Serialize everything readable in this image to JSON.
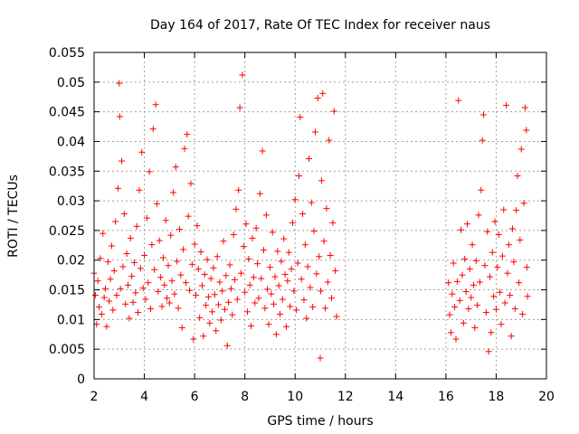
{
  "chart_data": {
    "type": "scatter",
    "title": "Day 164 of 2017, Rate Of TEC Index for receiver naus",
    "xlabel": "GPS time / hours",
    "ylabel": "ROTI / TECUs",
    "xlim": [
      2,
      20
    ],
    "ylim": [
      0,
      0.055
    ],
    "x_ticks": [
      "2",
      "4",
      "6",
      "8",
      "10",
      "12",
      "14",
      "16",
      "18",
      "20"
    ],
    "y_ticks": [
      "0",
      "0.005",
      "0.01",
      "0.015",
      "0.02",
      "0.025",
      "0.03",
      "0.035",
      "0.04",
      "0.045",
      "0.05",
      "0.055"
    ],
    "grid": true,
    "marker": "+",
    "color": "#ff0000",
    "series": [
      {
        "name": "ROTI",
        "points": [
          [
            2.0,
            0.0178
          ],
          [
            2.05,
            0.0141
          ],
          [
            2.1,
            0.0092
          ],
          [
            2.15,
            0.0165
          ],
          [
            2.2,
            0.0121
          ],
          [
            2.25,
            0.0203
          ],
          [
            2.3,
            0.0109
          ],
          [
            2.35,
            0.0245
          ],
          [
            2.4,
            0.0137
          ],
          [
            2.45,
            0.0152
          ],
          [
            2.5,
            0.0088
          ],
          [
            2.55,
            0.0197
          ],
          [
            2.6,
            0.0131
          ],
          [
            2.65,
            0.0168
          ],
          [
            2.7,
            0.0224
          ],
          [
            2.75,
            0.0116
          ],
          [
            2.8,
            0.0182
          ],
          [
            2.85,
            0.0265
          ],
          [
            2.9,
            0.0141
          ],
          [
            2.95,
            0.0321
          ],
          [
            3.0,
            0.0498
          ],
          [
            3.02,
            0.0442
          ],
          [
            3.05,
            0.0152
          ],
          [
            3.1,
            0.0367
          ],
          [
            3.15,
            0.0189
          ],
          [
            3.2,
            0.0278
          ],
          [
            3.25,
            0.0126
          ],
          [
            3.3,
            0.0211
          ],
          [
            3.35,
            0.0158
          ],
          [
            3.4,
            0.0102
          ],
          [
            3.45,
            0.0237
          ],
          [
            3.5,
            0.0173
          ],
          [
            3.55,
            0.0129
          ],
          [
            3.6,
            0.0196
          ],
          [
            3.65,
            0.0145
          ],
          [
            3.7,
            0.0257
          ],
          [
            3.75,
            0.0112
          ],
          [
            3.8,
            0.0318
          ],
          [
            3.85,
            0.0186
          ],
          [
            3.9,
            0.0382
          ],
          [
            3.95,
            0.0153
          ],
          [
            4.0,
            0.0208
          ],
          [
            4.05,
            0.0134
          ],
          [
            4.1,
            0.0271
          ],
          [
            4.15,
            0.0162
          ],
          [
            4.2,
            0.0349
          ],
          [
            4.25,
            0.0118
          ],
          [
            4.3,
            0.0226
          ],
          [
            4.35,
            0.0421
          ],
          [
            4.4,
            0.0184
          ],
          [
            4.45,
            0.0462
          ],
          [
            4.5,
            0.0295
          ],
          [
            4.55,
            0.0147
          ],
          [
            4.6,
            0.0233
          ],
          [
            4.65,
            0.0171
          ],
          [
            4.7,
            0.0122
          ],
          [
            4.75,
            0.0204
          ],
          [
            4.8,
            0.0158
          ],
          [
            4.85,
            0.0267
          ],
          [
            4.9,
            0.0136
          ],
          [
            4.95,
            0.0191
          ],
          [
            5.0,
            0.0128
          ],
          [
            5.05,
            0.0242
          ],
          [
            5.1,
            0.0165
          ],
          [
            5.15,
            0.0314
          ],
          [
            5.2,
            0.0143
          ],
          [
            5.25,
            0.0357
          ],
          [
            5.3,
            0.0198
          ],
          [
            5.35,
            0.0119
          ],
          [
            5.4,
            0.0252
          ],
          [
            5.45,
            0.0175
          ],
          [
            5.5,
            0.0086
          ],
          [
            5.55,
            0.0218
          ],
          [
            5.6,
            0.0388
          ],
          [
            5.65,
            0.0162
          ],
          [
            5.7,
            0.0412
          ],
          [
            5.75,
            0.0274
          ],
          [
            5.8,
            0.0149
          ],
          [
            5.85,
            0.0329
          ],
          [
            5.9,
            0.0193
          ],
          [
            5.95,
            0.0067
          ],
          [
            6.0,
            0.0227
          ],
          [
            6.05,
            0.0141
          ],
          [
            6.1,
            0.0258
          ],
          [
            6.15,
            0.0185
          ],
          [
            6.2,
            0.0103
          ],
          [
            6.25,
            0.0214
          ],
          [
            6.3,
            0.0157
          ],
          [
            6.35,
            0.0072
          ],
          [
            6.4,
            0.0176
          ],
          [
            6.45,
            0.0124
          ],
          [
            6.5,
            0.0201
          ],
          [
            6.55,
            0.0138
          ],
          [
            6.6,
            0.0094
          ],
          [
            6.65,
            0.0169
          ],
          [
            6.7,
            0.0113
          ],
          [
            6.75,
            0.0187
          ],
          [
            6.8,
            0.0142
          ],
          [
            6.85,
            0.0081
          ],
          [
            6.9,
            0.0206
          ],
          [
            6.95,
            0.0125
          ],
          [
            7.0,
            0.0163
          ],
          [
            7.05,
            0.0099
          ],
          [
            7.1,
            0.0148
          ],
          [
            7.15,
            0.0232
          ],
          [
            7.2,
            0.0117
          ],
          [
            7.25,
            0.0174
          ],
          [
            7.3,
            0.0056
          ],
          [
            7.35,
            0.0129
          ],
          [
            7.4,
            0.0192
          ],
          [
            7.45,
            0.0152
          ],
          [
            7.5,
            0.0108
          ],
          [
            7.55,
            0.0243
          ],
          [
            7.6,
            0.0167
          ],
          [
            7.65,
            0.0286
          ],
          [
            7.7,
            0.0134
          ],
          [
            7.75,
            0.0318
          ],
          [
            7.8,
            0.0457
          ],
          [
            7.85,
            0.0178
          ],
          [
            7.9,
            0.0512
          ],
          [
            7.95,
            0.0223
          ],
          [
            8.0,
            0.0146
          ],
          [
            8.05,
            0.0261
          ],
          [
            8.1,
            0.0113
          ],
          [
            8.15,
            0.0202
          ],
          [
            8.2,
            0.0158
          ],
          [
            8.25,
            0.0089
          ],
          [
            8.3,
            0.0237
          ],
          [
            8.35,
            0.0171
          ],
          [
            8.4,
            0.0128
          ],
          [
            8.45,
            0.0254
          ],
          [
            8.5,
            0.0194
          ],
          [
            8.55,
            0.0136
          ],
          [
            8.6,
            0.0312
          ],
          [
            8.65,
            0.0169
          ],
          [
            8.7,
            0.0384
          ],
          [
            8.75,
            0.0217
          ],
          [
            8.8,
            0.0119
          ],
          [
            8.85,
            0.0276
          ],
          [
            8.9,
            0.0151
          ],
          [
            8.95,
            0.0092
          ],
          [
            9.0,
            0.0188
          ],
          [
            9.05,
            0.0143
          ],
          [
            9.1,
            0.0247
          ],
          [
            9.15,
            0.0126
          ],
          [
            9.2,
            0.0172
          ],
          [
            9.25,
            0.0075
          ],
          [
            9.3,
            0.0215
          ],
          [
            9.35,
            0.0157
          ],
          [
            9.4,
            0.0109
          ],
          [
            9.45,
            0.0198
          ],
          [
            9.5,
            0.0134
          ],
          [
            9.55,
            0.0236
          ],
          [
            9.6,
            0.0176
          ],
          [
            9.65,
            0.0088
          ],
          [
            9.7,
            0.0165
          ],
          [
            9.75,
            0.0213
          ],
          [
            9.8,
            0.0122
          ],
          [
            9.85,
            0.0185
          ],
          [
            9.9,
            0.0263
          ],
          [
            9.95,
            0.0148
          ],
          [
            10.0,
            0.0302
          ],
          [
            10.05,
            0.0116
          ],
          [
            10.1,
            0.0195
          ],
          [
            10.15,
            0.0342
          ],
          [
            10.2,
            0.0441
          ],
          [
            10.25,
            0.0168
          ],
          [
            10.3,
            0.0278
          ],
          [
            10.35,
            0.0133
          ],
          [
            10.4,
            0.0226
          ],
          [
            10.45,
            0.0102
          ],
          [
            10.5,
            0.0189
          ],
          [
            10.55,
            0.0371
          ],
          [
            10.6,
            0.0154
          ],
          [
            10.65,
            0.0297
          ],
          [
            10.7,
            0.0121
          ],
          [
            10.75,
            0.0249
          ],
          [
            10.8,
            0.0416
          ],
          [
            10.85,
            0.0177
          ],
          [
            10.9,
            0.0473
          ],
          [
            10.95,
            0.0206
          ],
          [
            11.0,
            0.0035
          ],
          [
            11.02,
            0.0148
          ],
          [
            11.05,
            0.0334
          ],
          [
            11.1,
            0.0481
          ],
          [
            11.15,
            0.0232
          ],
          [
            11.2,
            0.0119
          ],
          [
            11.25,
            0.0287
          ],
          [
            11.3,
            0.0163
          ],
          [
            11.35,
            0.0402
          ],
          [
            11.4,
            0.0208
          ],
          [
            11.45,
            0.0136
          ],
          [
            11.5,
            0.0263
          ],
          [
            11.55,
            0.0451
          ],
          [
            11.6,
            0.0182
          ],
          [
            11.65,
            0.0105
          ],
          [
            16.1,
            0.0162
          ],
          [
            16.15,
            0.0108
          ],
          [
            16.2,
            0.0078
          ],
          [
            16.25,
            0.0143
          ],
          [
            16.3,
            0.0195
          ],
          [
            16.35,
            0.0121
          ],
          [
            16.4,
            0.0067
          ],
          [
            16.45,
            0.0164
          ],
          [
            16.5,
            0.0469
          ],
          [
            16.55,
            0.0132
          ],
          [
            16.6,
            0.0251
          ],
          [
            16.65,
            0.0175
          ],
          [
            16.7,
            0.0094
          ],
          [
            16.75,
            0.0202
          ],
          [
            16.8,
            0.0147
          ],
          [
            16.85,
            0.0261
          ],
          [
            16.9,
            0.0118
          ],
          [
            16.95,
            0.0185
          ],
          [
            17.0,
            0.0137
          ],
          [
            17.05,
            0.0226
          ],
          [
            17.1,
            0.0158
          ],
          [
            17.15,
            0.0086
          ],
          [
            17.2,
            0.0199
          ],
          [
            17.25,
            0.0124
          ],
          [
            17.3,
            0.0276
          ],
          [
            17.35,
            0.0163
          ],
          [
            17.4,
            0.0318
          ],
          [
            17.45,
            0.0402
          ],
          [
            17.5,
            0.0445
          ],
          [
            17.55,
            0.0191
          ],
          [
            17.6,
            0.0112
          ],
          [
            17.65,
            0.0248
          ],
          [
            17.7,
            0.0046
          ],
          [
            17.75,
            0.0172
          ],
          [
            17.8,
            0.0078
          ],
          [
            17.85,
            0.0213
          ],
          [
            17.9,
            0.0139
          ],
          [
            17.95,
            0.0265
          ],
          [
            18.0,
            0.0117
          ],
          [
            18.05,
            0.0188
          ],
          [
            18.1,
            0.0243
          ],
          [
            18.15,
            0.0146
          ],
          [
            18.2,
            0.0092
          ],
          [
            18.25,
            0.0207
          ],
          [
            18.3,
            0.0285
          ],
          [
            18.35,
            0.0128
          ],
          [
            18.4,
            0.0461
          ],
          [
            18.45,
            0.0178
          ],
          [
            18.5,
            0.0226
          ],
          [
            18.55,
            0.0141
          ],
          [
            18.6,
            0.0072
          ],
          [
            18.65,
            0.0253
          ],
          [
            18.7,
            0.0197
          ],
          [
            18.75,
            0.0118
          ],
          [
            18.8,
            0.0284
          ],
          [
            18.85,
            0.0342
          ],
          [
            18.9,
            0.0162
          ],
          [
            18.95,
            0.0234
          ],
          [
            19.0,
            0.0387
          ],
          [
            19.05,
            0.0109
          ],
          [
            19.1,
            0.0296
          ],
          [
            19.15,
            0.0457
          ],
          [
            19.2,
            0.0419
          ],
          [
            19.22,
            0.0188
          ],
          [
            19.25,
            0.0139
          ]
        ]
      }
    ]
  }
}
